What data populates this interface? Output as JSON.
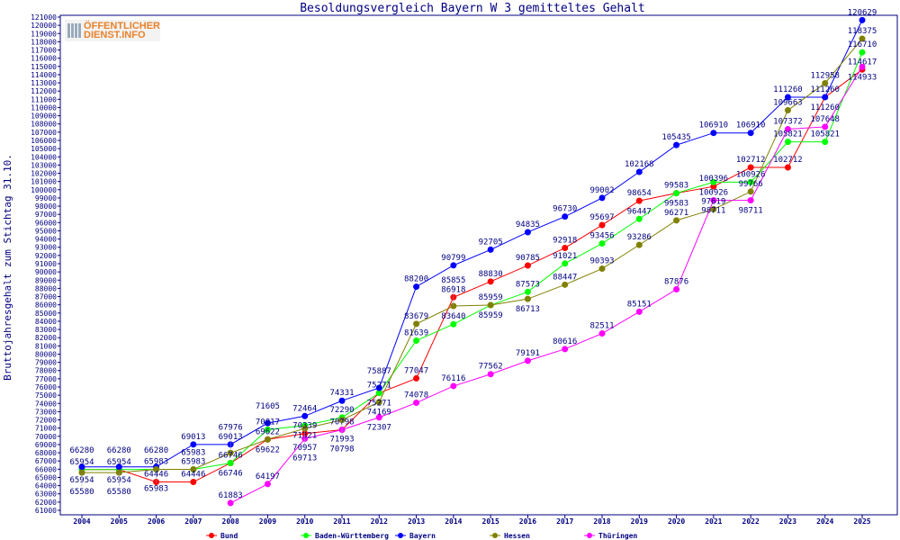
{
  "chart_data": {
    "type": "line",
    "title": "Besoldungsvergleich Bayern W 3 gemitteltes Gehalt",
    "ylabel": "Bruttojahresgehalt zum Stichtag 31.10.",
    "xlabel": "",
    "ylim": [
      61000,
      121000
    ],
    "ytick_step": 1000,
    "grid": false,
    "legend_position": "bottom",
    "x": [
      "2004",
      "2005",
      "2006",
      "2007",
      "2008",
      "2009",
      "2010",
      "2011",
      "2012",
      "2013",
      "2014",
      "2015",
      "2016",
      "2017",
      "2018",
      "2019",
      "2020",
      "2021",
      "2022",
      "2023",
      "2024",
      "2025"
    ],
    "series": [
      {
        "name": "Bund",
        "color": "#ff0000",
        "values": [
          65954,
          65954,
          64446,
          64446,
          66746,
          69622,
          70339,
          70798,
          75271,
          77047,
          86918,
          88830,
          90785,
          92918,
          95697,
          98654,
          99583,
          100396,
          102712,
          102712,
          111260,
          114617
        ]
      },
      {
        "name": "Baden-Württemberg",
        "color": "#00ff00",
        "values": [
          65954,
          65954,
          65983,
          65983,
          66746,
          70817,
          71321,
          72290,
          75271,
          81639,
          83640,
          85959,
          87573,
          91021,
          93456,
          96447,
          99583,
          100926,
          100926,
          105821,
          105821,
          116710
        ]
      },
      {
        "name": "Bayern",
        "color": "#0000ff",
        "values": [
          66280,
          66280,
          66280,
          69013,
          69013,
          71605,
          72464,
          74331,
          75887,
          88200,
          90799,
          92705,
          94835,
          96730,
          99002,
          102168,
          105435,
          106910,
          106910,
          111260,
          111260,
          120629
        ]
      },
      {
        "name": "Hessen",
        "color": "#808000",
        "values": [
          65580,
          65580,
          65983,
          65983,
          67976,
          69622,
          70957,
          71993,
          74169,
          83679,
          85855,
          85959,
          86713,
          88447,
          90393,
          93286,
          96271,
          97619,
          99766,
          109663,
          112958,
          118375
        ]
      },
      {
        "name": "Thüringen",
        "color": "#ff00ff",
        "values": [
          null,
          null,
          null,
          null,
          61883,
          64197,
          69713,
          70798,
          72307,
          74078,
          76116,
          77562,
          79191,
          80616,
          82511,
          85151,
          87876,
          98711,
          98711,
          107372,
          107648,
          114933
        ]
      }
    ]
  },
  "logo": {
    "line1": "ÖFFENTLICHER",
    "line2": "DIENST.INFO"
  }
}
